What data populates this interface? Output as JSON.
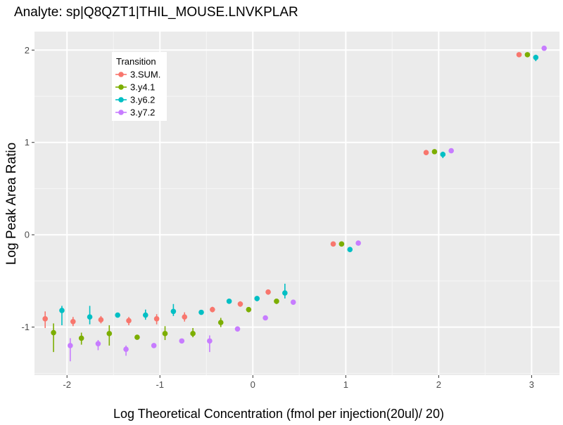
{
  "chart_data": {
    "type": "scatter",
    "title": "Analyte: sp|Q8QZT1|THIL_MOUSE.LNVKPLAR",
    "xlabel": "Log Theoretical Concentration (fmol per injection(20ul)/ 20)",
    "ylabel": "Log Peak Area Ratio",
    "xlim": [
      -2.35,
      3.3
    ],
    "ylim": [
      -1.52,
      2.2
    ],
    "x_ticks": [
      -2,
      -1,
      0,
      1,
      2,
      3
    ],
    "x_tick_labels": [
      "-2",
      "-1",
      "0",
      "1",
      "2",
      "3"
    ],
    "y_ticks": [
      -1,
      0,
      1,
      2
    ],
    "y_tick_labels": [
      "-1",
      "0",
      "1",
      "2"
    ],
    "grid": true,
    "legend": {
      "title": "Transition",
      "placement": "top-left"
    },
    "series": [
      {
        "name": "3.SUM.",
        "color": "#F8766D",
        "points": [
          {
            "x": -2.1,
            "y": -0.91,
            "lo": -1.01,
            "hi": -0.83
          },
          {
            "x": -1.8,
            "y": -0.94,
            "lo": -0.99,
            "hi": -0.89
          },
          {
            "x": -1.5,
            "y": -0.92,
            "lo": -0.96,
            "hi": -0.88
          },
          {
            "x": -1.2,
            "y": -0.93,
            "lo": -0.98,
            "hi": -0.89
          },
          {
            "x": -0.9,
            "y": -0.91,
            "lo": -0.97,
            "hi": -0.86
          },
          {
            "x": -0.6,
            "y": -0.89,
            "lo": -0.94,
            "hi": -0.84
          },
          {
            "x": -0.3,
            "y": -0.81,
            "lo": -0.84,
            "hi": -0.78
          },
          {
            "x": 0.0,
            "y": -0.75,
            "lo": -0.78,
            "hi": -0.72
          },
          {
            "x": 0.3,
            "y": -0.62,
            "lo": -0.65,
            "hi": -0.6
          },
          {
            "x": 1.0,
            "y": -0.1,
            "lo": -0.12,
            "hi": -0.08
          },
          {
            "x": 2.0,
            "y": 0.89,
            "lo": 0.87,
            "hi": 0.91
          },
          {
            "x": 3.0,
            "y": 1.95,
            "lo": 1.93,
            "hi": 1.97
          }
        ]
      },
      {
        "name": "3.y4.1",
        "color": "#7CAE00",
        "points": [
          {
            "x": -2.1,
            "y": -1.06,
            "lo": -1.27,
            "hi": -0.96
          },
          {
            "x": -1.8,
            "y": -1.12,
            "lo": -1.19,
            "hi": -1.06
          },
          {
            "x": -1.5,
            "y": -1.07,
            "lo": -1.2,
            "hi": -0.98
          },
          {
            "x": -1.2,
            "y": -1.11,
            "lo": -1.13,
            "hi": -1.09
          },
          {
            "x": -0.9,
            "y": -1.07,
            "lo": -1.14,
            "hi": -0.99
          },
          {
            "x": -0.6,
            "y": -1.07,
            "lo": -1.11,
            "hi": -1.01
          },
          {
            "x": -0.3,
            "y": -0.95,
            "lo": -1.0,
            "hi": -0.9
          },
          {
            "x": 0.0,
            "y": -0.81,
            "lo": -0.84,
            "hi": -0.79
          },
          {
            "x": 0.3,
            "y": -0.72,
            "lo": -0.75,
            "hi": -0.7
          },
          {
            "x": 1.0,
            "y": -0.1,
            "lo": -0.12,
            "hi": -0.09
          },
          {
            "x": 2.0,
            "y": 0.9,
            "lo": 0.88,
            "hi": 0.92
          },
          {
            "x": 3.0,
            "y": 1.95,
            "lo": 1.93,
            "hi": 1.97
          }
        ]
      },
      {
        "name": "3.y6.2",
        "color": "#00BFC4",
        "points": [
          {
            "x": -2.1,
            "y": -0.82,
            "lo": -0.98,
            "hi": -0.77
          },
          {
            "x": -1.8,
            "y": -0.89,
            "lo": -0.97,
            "hi": -0.77
          },
          {
            "x": -1.5,
            "y": -0.87,
            "lo": -0.89,
            "hi": -0.85
          },
          {
            "x": -1.2,
            "y": -0.87,
            "lo": -0.92,
            "hi": -0.81
          },
          {
            "x": -0.9,
            "y": -0.83,
            "lo": -0.88,
            "hi": -0.75
          },
          {
            "x": -0.6,
            "y": -0.84,
            "lo": -0.86,
            "hi": -0.82
          },
          {
            "x": -0.3,
            "y": -0.72,
            "lo": -0.74,
            "hi": -0.7
          },
          {
            "x": 0.0,
            "y": -0.69,
            "lo": -0.72,
            "hi": -0.67
          },
          {
            "x": 0.3,
            "y": -0.63,
            "lo": -0.69,
            "hi": -0.53
          },
          {
            "x": 1.0,
            "y": -0.16,
            "lo": -0.18,
            "hi": -0.14
          },
          {
            "x": 2.0,
            "y": 0.87,
            "lo": 0.83,
            "hi": 0.9
          },
          {
            "x": 3.0,
            "y": 1.92,
            "lo": 1.88,
            "hi": 1.95
          }
        ]
      },
      {
        "name": "3.y7.2",
        "color": "#C77CFF",
        "points": [
          {
            "x": -2.1,
            "y": -1.2,
            "lo": -1.37,
            "hi": -1.12
          },
          {
            "x": -1.8,
            "y": -1.18,
            "lo": -1.25,
            "hi": -1.14
          },
          {
            "x": -1.5,
            "y": -1.24,
            "lo": -1.31,
            "hi": -1.2
          },
          {
            "x": -1.2,
            "y": -1.2,
            "lo": -1.22,
            "hi": -1.18
          },
          {
            "x": -0.9,
            "y": -1.15,
            "lo": -1.17,
            "hi": -1.13
          },
          {
            "x": -0.6,
            "y": -1.15,
            "lo": -1.27,
            "hi": -1.09
          },
          {
            "x": -0.3,
            "y": -1.02,
            "lo": -1.04,
            "hi": -1.0
          },
          {
            "x": 0.0,
            "y": -0.9,
            "lo": -0.92,
            "hi": -0.88
          },
          {
            "x": 0.3,
            "y": -0.73,
            "lo": -0.75,
            "hi": -0.71
          },
          {
            "x": 1.0,
            "y": -0.09,
            "lo": -0.11,
            "hi": -0.08
          },
          {
            "x": 2.0,
            "y": 0.91,
            "lo": 0.89,
            "hi": 0.92
          },
          {
            "x": 3.0,
            "y": 2.02,
            "lo": 2.0,
            "hi": 2.03
          }
        ]
      }
    ]
  }
}
